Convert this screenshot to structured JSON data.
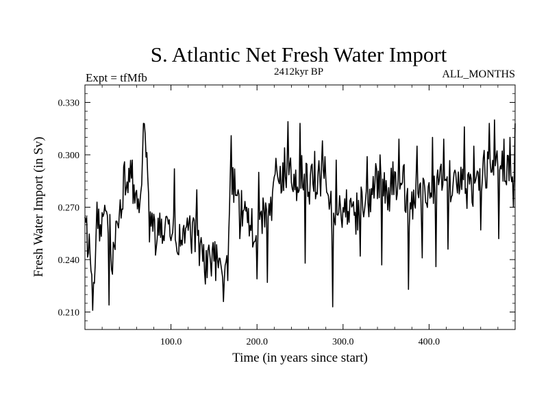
{
  "chart_data": {
    "type": "line",
    "title": "S. Atlantic Net Fresh Water Import",
    "subtitle_left": "Expt = tfMfb",
    "subtitle_center": "2412kyr BP",
    "subtitle_right": "ALL_MONTHS",
    "xlabel": "Time (in years since start)",
    "ylabel": "Fresh Water Import (in Sv)",
    "xlim": [
      0,
      500
    ],
    "ylim": [
      0.2,
      0.34
    ],
    "x_ticks": [
      100,
      200,
      300,
      400
    ],
    "x_tick_labels": [
      "100.0",
      "200.0",
      "300.0",
      "400.0"
    ],
    "y_ticks": [
      0.21,
      0.24,
      0.27,
      0.3,
      0.33
    ],
    "y_tick_labels": [
      "0.210",
      "0.240",
      "0.270",
      "0.300",
      "0.330"
    ],
    "grid": false,
    "series": [
      {
        "name": "Net Fresh Water Import",
        "color": "#000000",
        "anchors": [
          [
            0,
            0.258
          ],
          [
            5,
            0.25
          ],
          [
            9,
            0.212
          ],
          [
            14,
            0.265
          ],
          [
            20,
            0.255
          ],
          [
            28,
            0.268
          ],
          [
            32,
            0.235
          ],
          [
            37,
            0.262
          ],
          [
            45,
            0.282
          ],
          [
            52,
            0.29
          ],
          [
            60,
            0.275
          ],
          [
            66,
            0.278
          ],
          [
            69,
            0.318
          ],
          [
            75,
            0.262
          ],
          [
            82,
            0.252
          ],
          [
            90,
            0.258
          ],
          [
            100,
            0.255
          ],
          [
            110,
            0.25
          ],
          [
            120,
            0.258
          ],
          [
            130,
            0.25
          ],
          [
            138,
            0.24
          ],
          [
            145,
            0.242
          ],
          [
            152,
            0.238
          ],
          [
            160,
            0.233
          ],
          [
            165,
            0.242
          ],
          [
            170,
            0.29
          ],
          [
            178,
            0.272
          ],
          [
            186,
            0.265
          ],
          [
            195,
            0.258
          ],
          [
            205,
            0.262
          ],
          [
            215,
            0.27
          ],
          [
            225,
            0.282
          ],
          [
            235,
            0.292
          ],
          [
            245,
            0.285
          ],
          [
            252,
            0.29
          ],
          [
            260,
            0.282
          ],
          [
            270,
            0.286
          ],
          [
            280,
            0.288
          ],
          [
            288,
            0.262
          ],
          [
            295,
            0.27
          ],
          [
            305,
            0.265
          ],
          [
            312,
            0.262
          ],
          [
            320,
            0.272
          ],
          [
            330,
            0.275
          ],
          [
            340,
            0.285
          ],
          [
            350,
            0.278
          ],
          [
            360,
            0.282
          ],
          [
            370,
            0.285
          ],
          [
            378,
            0.265
          ],
          [
            385,
            0.278
          ],
          [
            395,
            0.276
          ],
          [
            405,
            0.28
          ],
          [
            415,
            0.288
          ],
          [
            425,
            0.285
          ],
          [
            435,
            0.285
          ],
          [
            445,
            0.28
          ],
          [
            455,
            0.283
          ],
          [
            465,
            0.292
          ],
          [
            475,
            0.29
          ],
          [
            485,
            0.293
          ],
          [
            493,
            0.29
          ],
          [
            500,
            0.292
          ]
        ],
        "spikes": [
          [
            9,
            0.211
          ],
          [
            13,
            0.255
          ],
          [
            28,
            0.214
          ],
          [
            36,
            0.262
          ],
          [
            46,
            0.296
          ],
          [
            55,
            0.297
          ],
          [
            68,
            0.318
          ],
          [
            70,
            0.312
          ],
          [
            83,
            0.247
          ],
          [
            104,
            0.292
          ],
          [
            130,
            0.28
          ],
          [
            140,
            0.226
          ],
          [
            152,
            0.228
          ],
          [
            161,
            0.216
          ],
          [
            166,
            0.228
          ],
          [
            170,
            0.311
          ],
          [
            180,
            0.252
          ],
          [
            200,
            0.229
          ],
          [
            202,
            0.29
          ],
          [
            212,
            0.227
          ],
          [
            222,
            0.298
          ],
          [
            232,
            0.304
          ],
          [
            236,
            0.319
          ],
          [
            250,
            0.318
          ],
          [
            256,
            0.238
          ],
          [
            267,
            0.302
          ],
          [
            276,
            0.308
          ],
          [
            288,
            0.213
          ],
          [
            292,
            0.297
          ],
          [
            304,
            0.28
          ],
          [
            320,
            0.242
          ],
          [
            328,
            0.299
          ],
          [
            343,
            0.3
          ],
          [
            345,
            0.237
          ],
          [
            358,
            0.296
          ],
          [
            365,
            0.309
          ],
          [
            376,
            0.223
          ],
          [
            386,
            0.305
          ],
          [
            392,
            0.241
          ],
          [
            404,
            0.31
          ],
          [
            408,
            0.236
          ],
          [
            417,
            0.309
          ],
          [
            422,
            0.246
          ],
          [
            441,
            0.316
          ],
          [
            452,
            0.305
          ],
          [
            460,
            0.257
          ],
          [
            470,
            0.318
          ],
          [
            476,
            0.32
          ],
          [
            481,
            0.252
          ],
          [
            487,
            0.309
          ],
          [
            494,
            0.31
          ],
          [
            498,
            0.27
          ],
          [
            500,
            0.318
          ]
        ],
        "n_points": 500,
        "noise_amplitude": 0.012
      }
    ]
  }
}
